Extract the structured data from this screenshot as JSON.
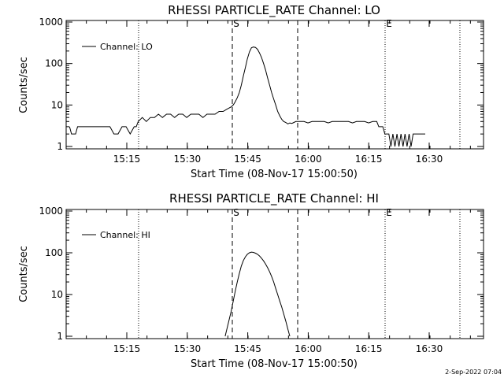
{
  "footer": {
    "timestamp": "2-Sep-2022 07:04"
  },
  "chart_data": [
    {
      "type": "line",
      "title": "RHESSI PARTICLE_RATE Channel: LO",
      "xlabel": "Start Time (08-Nov-17 15:00:50)",
      "ylabel": "Counts/sec",
      "y_scale": "log",
      "ylim": [
        1,
        1000
      ],
      "y_ticks": [
        "1",
        "10",
        "100",
        "1000"
      ],
      "x_ticks": [
        "15:15",
        "15:30",
        "15:45",
        "16:00",
        "16:15",
        "16:30"
      ],
      "legend": {
        "position": "top-left",
        "label": "Channel: LO"
      },
      "markers": {
        "start_label": "S",
        "end_label": "E"
      },
      "series": [
        {
          "name": "Channel: LO",
          "x_minutes": [
            0,
            0.5,
            1,
            1.5,
            2,
            3,
            4,
            5,
            6,
            7,
            8,
            9,
            10,
            11,
            12,
            13,
            14,
            15,
            16,
            16.5,
            17,
            18,
            19,
            20,
            21,
            22,
            23,
            24,
            25,
            26,
            27,
            28,
            29,
            30,
            31,
            32,
            33,
            34,
            35,
            36,
            37,
            38,
            39,
            40,
            40.5,
            41,
            41.5,
            42,
            42.5,
            43,
            43.5,
            44,
            44.5,
            45,
            45.5,
            46,
            46.5,
            47,
            47.5,
            48,
            48.5,
            49,
            49.5,
            50,
            50.5,
            51,
            51.5,
            52,
            52.5,
            53,
            53.5,
            54,
            54.5,
            55,
            55.5,
            56,
            57,
            58,
            59,
            60,
            61,
            62,
            63,
            64,
            65,
            66,
            67,
            68,
            69,
            70,
            71,
            72,
            73,
            74,
            75,
            76,
            76.5,
            77,
            77.5,
            78,
            78.5,
            79,
            79.5,
            80,
            80.5,
            81,
            81.5,
            82,
            82.5,
            83,
            83.5,
            84,
            84.5,
            85,
            85.5,
            86,
            86.5,
            87,
            87.5,
            88
          ],
          "values": [
            3,
            2,
            2,
            2,
            3,
            3,
            3,
            3,
            3,
            3,
            3,
            3,
            3,
            2,
            2,
            3,
            3,
            2,
            3,
            3,
            4,
            5,
            4,
            5,
            5,
            6,
            5,
            6,
            6,
            5,
            6,
            6,
            5,
            6,
            6,
            6,
            5,
            6,
            6,
            6,
            7,
            7,
            8,
            9,
            10,
            12,
            15,
            20,
            30,
            50,
            80,
            130,
            190,
            240,
            250,
            245,
            220,
            180,
            140,
            100,
            70,
            45,
            30,
            20,
            14,
            10,
            7,
            5.5,
            4.5,
            4,
            3.8,
            3.5,
            3.7,
            3.6,
            3.8,
            4,
            4,
            4,
            3.7,
            4,
            4,
            4,
            4,
            3.7,
            4,
            4,
            4,
            4,
            4,
            3.7,
            4,
            4,
            4,
            3.7,
            4,
            4,
            3,
            3,
            3,
            2,
            2,
            2,
            1,
            2,
            1,
            2,
            1,
            2,
            1,
            2,
            1,
            2,
            1,
            2,
            2,
            2,
            2,
            2,
            2,
            2
          ]
        }
      ]
    },
    {
      "type": "line",
      "title": "RHESSI PARTICLE_RATE Channel: HI",
      "xlabel": "Start Time (08-Nov-17 15:00:50)",
      "ylabel": "Counts/sec",
      "y_scale": "log",
      "ylim": [
        1,
        1000
      ],
      "y_ticks": [
        "1",
        "10",
        "100",
        "1000"
      ],
      "x_ticks": [
        "15:15",
        "15:30",
        "15:45",
        "16:00",
        "16:15",
        "16:30"
      ],
      "legend": {
        "position": "top-left",
        "label": "Channel: HI"
      },
      "markers": {
        "start_label": "S",
        "end_label": "E"
      },
      "series": [
        {
          "name": "Channel: HI",
          "x_minutes": [
            38.5,
            39,
            39.5,
            40,
            40.5,
            41,
            41.5,
            42,
            42.5,
            43,
            43.5,
            44,
            44.5,
            45,
            45.5,
            46,
            46.5,
            47,
            47.5,
            48,
            48.5,
            49,
            49.5,
            50,
            50.5,
            51,
            51.5,
            52,
            52.5,
            53,
            53.5,
            54,
            54.5
          ],
          "values": [
            1,
            1.6,
            2.5,
            4,
            7,
            12,
            20,
            32,
            48,
            65,
            80,
            92,
            100,
            104,
            102,
            98,
            92,
            84,
            74,
            64,
            54,
            44,
            35,
            27,
            20,
            14,
            10,
            7,
            5,
            3.4,
            2.3,
            1.5,
            1
          ]
        }
      ]
    }
  ]
}
